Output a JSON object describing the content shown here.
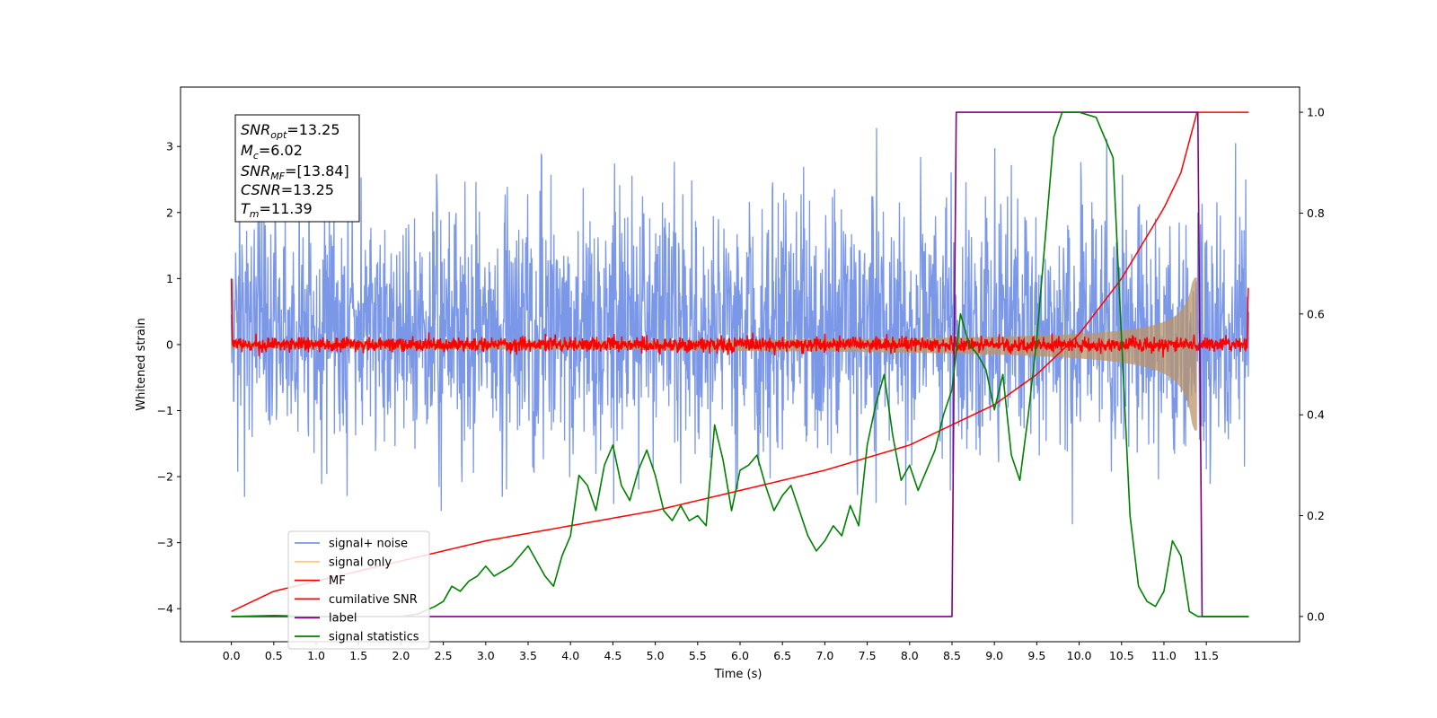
{
  "chart_data": {
    "type": "line",
    "xlabel": "Time (s)",
    "ylabel": "Whitened strain",
    "xlim": [
      -0.6,
      12.6
    ],
    "ylim": [
      -4.5,
      3.9
    ],
    "y2lim": [
      -0.05,
      1.05
    ],
    "x_ticks": [
      "0.0",
      "0.5",
      "1.0",
      "1.5",
      "2.0",
      "2.5",
      "3.0",
      "3.5",
      "4.0",
      "4.5",
      "5.0",
      "5.5",
      "6.0",
      "6.5",
      "7.0",
      "7.5",
      "8.0",
      "8.5",
      "9.0",
      "9.5",
      "10.0",
      "10.5",
      "11.0",
      "11.5"
    ],
    "y_ticks": [
      "−4",
      "−3",
      "−2",
      "−1",
      "0",
      "1",
      "2",
      "3"
    ],
    "y2_ticks": [
      "0.0",
      "0.2",
      "0.4",
      "0.6",
      "0.8",
      "1.0"
    ],
    "legend_position": "lower-left",
    "colors": {
      "signal_noise": "#7a97e8",
      "signal_only": "#ffcc80",
      "mf": "#ff0000",
      "cumulative_snr": "#ff0000",
      "label": "#800080",
      "signal_statistics": "#008000"
    },
    "series": [
      {
        "name": "signal+ noise",
        "axis": "left",
        "x_range": [
          0.0,
          12.0
        ],
        "approx_envelope": [
          -2.8,
          3.5
        ]
      },
      {
        "name": "signal only",
        "axis": "left",
        "x_range": [
          0.0,
          11.39
        ],
        "approx_envelope_at_end": [
          -1.5,
          1.0
        ]
      },
      {
        "name": "MF",
        "axis": "left",
        "x_range": [
          0.0,
          12.0
        ],
        "approx_envelope": [
          -0.15,
          0.15
        ]
      },
      {
        "name": "cumilative SNR",
        "axis": "right",
        "x": [
          0.0,
          0.5,
          1.0,
          2.0,
          3.0,
          4.0,
          5.0,
          6.0,
          7.0,
          8.0,
          9.0,
          9.5,
          10.0,
          10.5,
          11.0,
          11.2,
          11.39,
          12.0
        ],
        "y": [
          0.01,
          0.05,
          0.07,
          0.11,
          0.15,
          0.18,
          0.21,
          0.25,
          0.29,
          0.34,
          0.42,
          0.48,
          0.56,
          0.67,
          0.81,
          0.88,
          1.0,
          1.0
        ]
      },
      {
        "name": "label",
        "axis": "right",
        "x": [
          0.0,
          8.5,
          8.55,
          11.4,
          11.45,
          12.0
        ],
        "y": [
          0.0,
          0.0,
          1.0,
          1.0,
          0.0,
          0.0
        ]
      },
      {
        "name": "signal statistics",
        "axis": "right",
        "x": [
          0.0,
          0.5,
          1.0,
          1.5,
          2.0,
          2.2,
          2.4,
          2.5,
          2.6,
          2.7,
          2.8,
          2.9,
          3.0,
          3.1,
          3.2,
          3.3,
          3.4,
          3.5,
          3.6,
          3.7,
          3.8,
          3.9,
          4.0,
          4.1,
          4.2,
          4.3,
          4.4,
          4.5,
          4.6,
          4.7,
          4.8,
          4.9,
          5.0,
          5.1,
          5.2,
          5.3,
          5.4,
          5.5,
          5.6,
          5.7,
          5.8,
          5.9,
          6.0,
          6.1,
          6.2,
          6.3,
          6.4,
          6.5,
          6.6,
          6.7,
          6.8,
          6.9,
          7.0,
          7.1,
          7.2,
          7.3,
          7.4,
          7.5,
          7.6,
          7.7,
          7.8,
          7.9,
          8.0,
          8.1,
          8.2,
          8.3,
          8.4,
          8.5,
          8.6,
          8.7,
          8.8,
          8.9,
          9.0,
          9.1,
          9.2,
          9.3,
          9.4,
          9.5,
          9.6,
          9.7,
          9.8,
          9.9,
          10.0,
          10.2,
          10.4,
          10.5,
          10.6,
          10.7,
          10.8,
          10.9,
          11.0,
          11.1,
          11.2,
          11.3,
          11.4,
          11.5,
          11.6,
          11.7,
          11.8,
          11.9,
          12.0
        ],
        "y": [
          0.0,
          0.002,
          0.0,
          0.0,
          0.0,
          0.005,
          0.02,
          0.03,
          0.06,
          0.05,
          0.07,
          0.08,
          0.1,
          0.08,
          0.09,
          0.1,
          0.12,
          0.14,
          0.11,
          0.08,
          0.06,
          0.12,
          0.16,
          0.28,
          0.26,
          0.21,
          0.3,
          0.34,
          0.26,
          0.23,
          0.29,
          0.33,
          0.28,
          0.21,
          0.19,
          0.22,
          0.19,
          0.2,
          0.18,
          0.38,
          0.31,
          0.21,
          0.29,
          0.3,
          0.32,
          0.26,
          0.21,
          0.24,
          0.26,
          0.21,
          0.16,
          0.13,
          0.15,
          0.18,
          0.16,
          0.22,
          0.18,
          0.34,
          0.42,
          0.48,
          0.36,
          0.27,
          0.3,
          0.25,
          0.29,
          0.33,
          0.4,
          0.45,
          0.6,
          0.54,
          0.52,
          0.49,
          0.41,
          0.48,
          0.32,
          0.27,
          0.4,
          0.55,
          0.75,
          0.95,
          1.0,
          1.0,
          1.0,
          0.99,
          0.91,
          0.55,
          0.2,
          0.06,
          0.03,
          0.02,
          0.05,
          0.15,
          0.12,
          0.01,
          0.0,
          0.0,
          0.0,
          0.0,
          0.0,
          0.0,
          0.0
        ]
      }
    ],
    "annotation": {
      "lines": [
        {
          "key": "snr_opt",
          "base": "SNR",
          "sub": "opt",
          "value": "=13.25"
        },
        {
          "key": "mc",
          "base": "M",
          "sub": "c",
          "value": "=6.02"
        },
        {
          "key": "snr_mf",
          "base": "SNR",
          "sub": "MF",
          "value": "=[13.84]"
        },
        {
          "key": "csnr",
          "base": "CSNR",
          "sub": "",
          "value": "=13.25"
        },
        {
          "key": "tm",
          "base": "T",
          "sub": "m",
          "value": "=11.39"
        }
      ]
    }
  }
}
